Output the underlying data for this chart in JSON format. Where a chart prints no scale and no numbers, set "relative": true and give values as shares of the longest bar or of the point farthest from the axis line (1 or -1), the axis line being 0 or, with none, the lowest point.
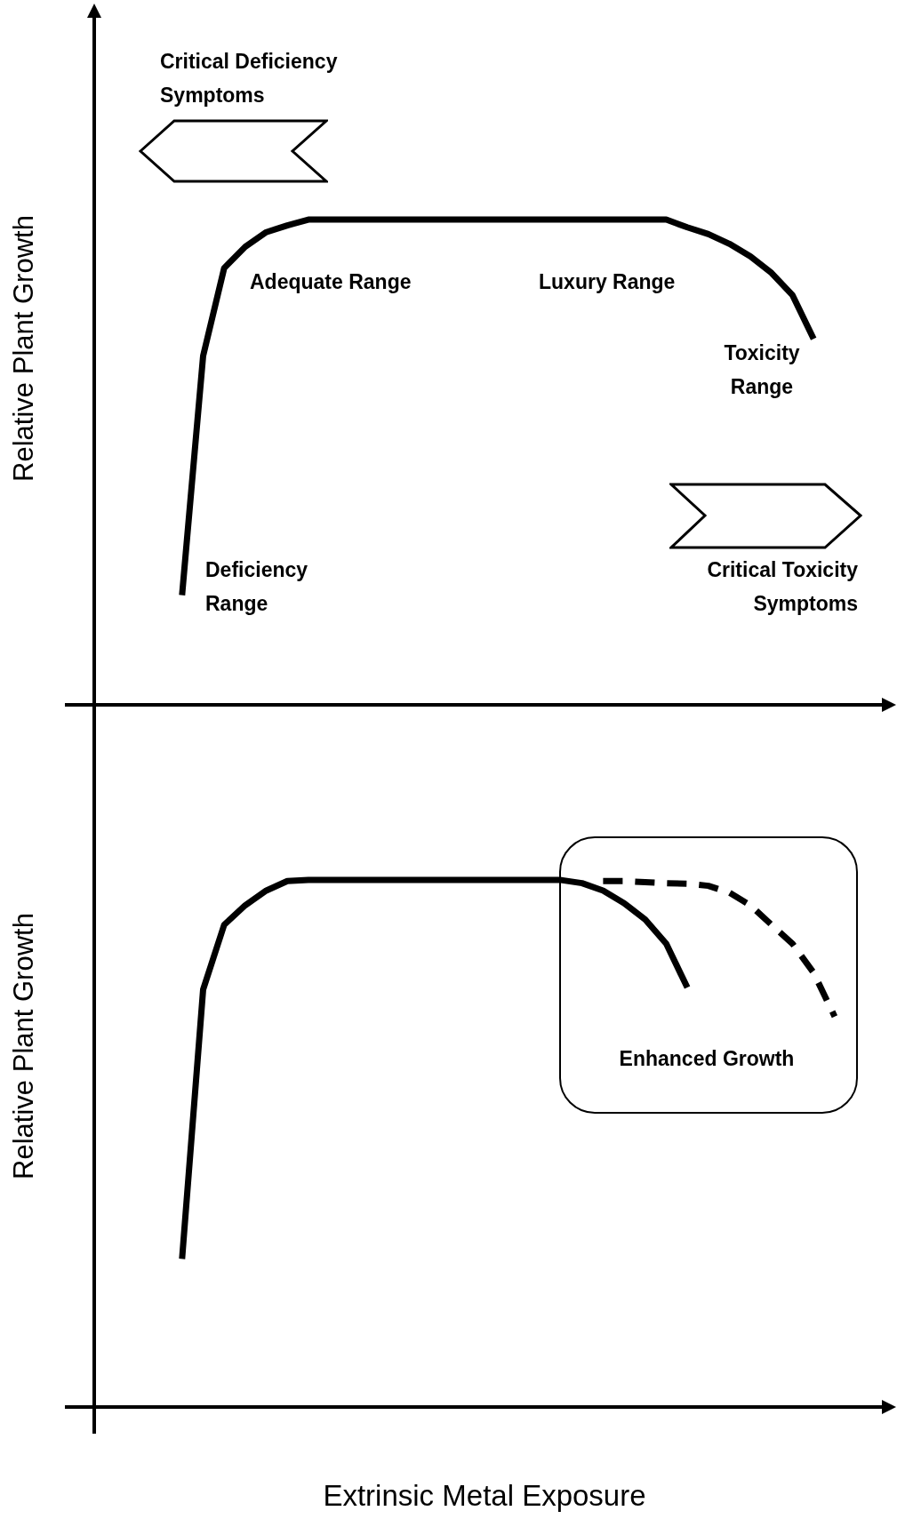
{
  "chart_data": [
    {
      "type": "line",
      "ylabel": "Relative Plant Growth",
      "relative": true,
      "tick_labels": false,
      "marker": "none",
      "categories": [
        null,
        null,
        null,
        null,
        null,
        null,
        null,
        null,
        null,
        null,
        null,
        null,
        null,
        null,
        null,
        null,
        null,
        null,
        null,
        null,
        null,
        null,
        null,
        null,
        null,
        null,
        null,
        null,
        null,
        null,
        null,
        null
      ],
      "series": [
        {
          "color": "#000000",
          "line_style": "solid",
          "values": [
            0.226,
            0.719,
            0.9,
            0.944,
            0.974,
            0.988,
            1,
            1,
            1,
            1,
            1,
            1,
            1,
            1,
            1,
            1,
            1,
            1,
            1,
            1,
            1,
            1,
            1,
            1,
            0.984,
            0.97,
            0.95,
            0.924,
            0.89,
            0.844,
            0.754,
            null
          ]
        }
      ],
      "annotations": [
        "Critical Deficiency Symptoms",
        "Adequate Range",
        "Luxury Range",
        "Toxicity Range",
        "Deficiency Range",
        "Critical Toxicity Symptoms"
      ]
    },
    {
      "type": "line",
      "ylabel": "Relative Plant Growth",
      "xlabel": "Extrinsic Metal Exposure",
      "relative": true,
      "tick_labels": false,
      "marker": "none",
      "categories": [
        null,
        null,
        null,
        null,
        null,
        null,
        null,
        null,
        null,
        null,
        null,
        null,
        null,
        null,
        null,
        null,
        null,
        null,
        null,
        null,
        null,
        null,
        null,
        null,
        null,
        null,
        null,
        null,
        null,
        null,
        null,
        null
      ],
      "series": [
        {
          "color": "#000000",
          "line_style": "solid",
          "values": [
            0.281,
            0.792,
            0.915,
            0.952,
            0.98,
            0.998,
            1,
            1,
            1,
            1,
            1,
            1,
            1,
            1,
            1,
            1,
            1,
            1,
            1,
            0.994,
            0.98,
            0.956,
            0.925,
            0.879,
            0.796,
            null,
            null,
            null,
            null,
            null,
            null,
            null
          ]
        },
        {
          "color": "#000000",
          "line_style": "dashed",
          "values": [
            null,
            null,
            null,
            null,
            null,
            null,
            null,
            null,
            null,
            null,
            null,
            null,
            null,
            null,
            null,
            null,
            null,
            null,
            null,
            null,
            0.998,
            0.998,
            0.996,
            0.994,
            0.993,
            0.989,
            0.976,
            0.952,
            0.915,
            0.879,
            0.824,
            0.741
          ]
        }
      ],
      "annotations": [
        "Enhanced Growth"
      ]
    }
  ]
}
